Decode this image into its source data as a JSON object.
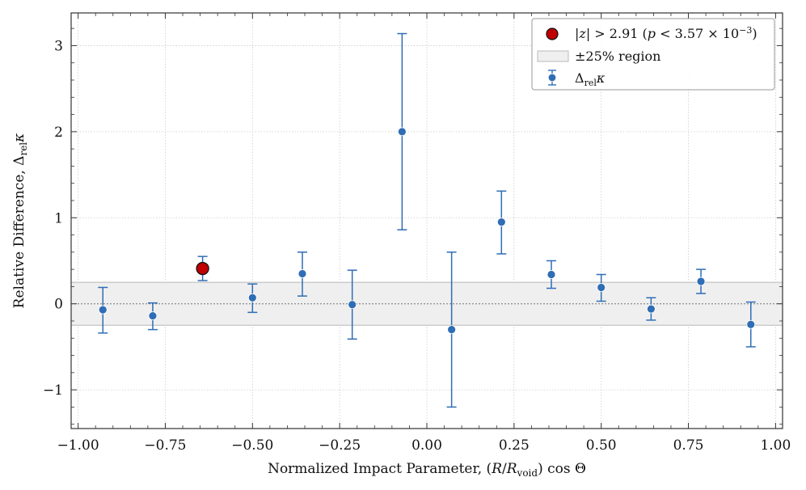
{
  "chart_data": {
    "type": "scatter",
    "title": "",
    "xlabel": "Normalized Impact Parameter, (R/R_void) cos Θ",
    "ylabel": "Relative Difference, Δ_rel κ",
    "xlim": [
      -1.02,
      1.02
    ],
    "ylim": [
      -1.45,
      3.38
    ],
    "x_ticks": [
      -1.0,
      -0.75,
      -0.5,
      -0.25,
      0.0,
      0.25,
      0.5,
      0.75,
      1.0
    ],
    "x_tick_labels": [
      "−1.00",
      "−0.75",
      "−0.50",
      "−0.25",
      "0.00",
      "0.25",
      "0.50",
      "0.75",
      "1.00"
    ],
    "y_ticks": [
      -1,
      0,
      1,
      2,
      3
    ],
    "y_tick_labels": [
      "−1",
      "0",
      "1",
      "2",
      "3"
    ],
    "grid": true,
    "band": {
      "label": "±25% region",
      "low": -0.25,
      "high": 0.25
    },
    "zero_line": 0,
    "series": [
      {
        "name": "Δ_rel κ",
        "color": "#2f6db5",
        "x": [
          -0.929,
          -0.786,
          -0.643,
          -0.5,
          -0.357,
          -0.214,
          -0.071,
          0.071,
          0.214,
          0.357,
          0.5,
          0.643,
          0.786,
          0.929
        ],
        "y": [
          -0.07,
          -0.14,
          0.41,
          0.07,
          0.35,
          -0.01,
          2.0,
          -0.3,
          0.95,
          0.34,
          0.19,
          -0.06,
          0.26,
          -0.24
        ],
        "y_err_low": [
          0.27,
          0.16,
          0.14,
          0.17,
          0.26,
          0.4,
          1.14,
          0.9,
          0.37,
          0.16,
          0.16,
          0.13,
          0.14,
          0.26
        ],
        "y_err_high": [
          0.26,
          0.15,
          0.14,
          0.16,
          0.25,
          0.4,
          1.14,
          0.9,
          0.36,
          0.16,
          0.15,
          0.13,
          0.14,
          0.26
        ]
      }
    ],
    "highlighted": {
      "name": "|z| > 2.91 (p < 3.57 × 10⁻³)",
      "color": "#c00000",
      "x": [
        -0.643
      ],
      "y": [
        0.41
      ]
    },
    "legend": {
      "placement": "top-right",
      "entries": [
        {
          "kind": "marker-big-red",
          "label": "|z| > 2.91 (p < 3.57 × 10⁻³)"
        },
        {
          "kind": "band",
          "label": "±25% region"
        },
        {
          "kind": "errorbar",
          "label": "Δ_rel κ"
        }
      ]
    }
  }
}
